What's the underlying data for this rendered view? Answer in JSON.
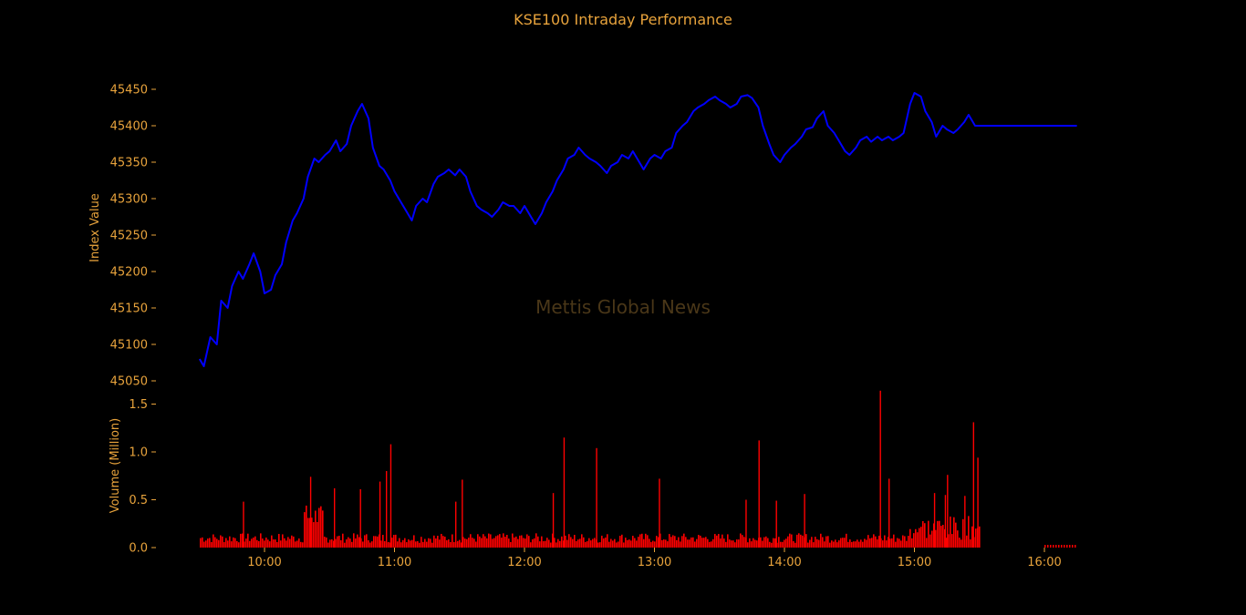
{
  "chart_data": [
    {
      "type": "line",
      "title": "KSE100 Intraday Performance",
      "ylabel": "Index Value",
      "ylim": [
        45040,
        45480
      ],
      "yticks": [
        45050,
        45100,
        45150,
        45200,
        45250,
        45300,
        45350,
        45400,
        45450
      ],
      "xlim_minutes": [
        9.3,
        16.5
      ],
      "series": [
        {
          "color": "#0000ff",
          "x": [
            "09:30",
            "09:32",
            "09:35",
            "09:38",
            "09:40",
            "09:43",
            "09:45",
            "09:48",
            "09:50",
            "09:53",
            "09:55",
            "09:58",
            "10:00",
            "10:03",
            "10:05",
            "10:08",
            "10:10",
            "10:13",
            "10:15",
            "10:18",
            "10:20",
            "10:23",
            "10:25",
            "10:28",
            "10:30",
            "10:33",
            "10:35",
            "10:38",
            "10:40",
            "10:43",
            "10:45",
            "10:48",
            "10:50",
            "10:53",
            "10:55",
            "10:58",
            "11:00",
            "11:03",
            "11:05",
            "11:08",
            "11:10",
            "11:13",
            "11:15",
            "11:18",
            "11:20",
            "11:23",
            "11:25",
            "11:28",
            "11:30",
            "11:33",
            "11:35",
            "11:38",
            "11:40",
            "11:43",
            "11:45",
            "11:48",
            "11:50",
            "11:53",
            "11:55",
            "11:58",
            "12:00",
            "12:03",
            "12:05",
            "12:08",
            "12:10",
            "12:13",
            "12:15",
            "12:18",
            "12:20",
            "12:23",
            "12:25",
            "12:28",
            "12:30",
            "12:33",
            "12:35",
            "12:38",
            "12:40",
            "12:43",
            "12:45",
            "12:48",
            "12:50",
            "12:53",
            "12:55",
            "12:58",
            "13:00",
            "13:03",
            "13:05",
            "13:08",
            "13:10",
            "13:13",
            "13:15",
            "13:18",
            "13:20",
            "13:23",
            "13:25",
            "13:28",
            "13:30",
            "13:33",
            "13:35",
            "13:38",
            "13:40",
            "13:43",
            "13:45",
            "13:48",
            "13:50",
            "13:53",
            "13:55",
            "13:58",
            "14:00",
            "14:03",
            "14:05",
            "14:08",
            "14:10",
            "14:13",
            "14:15",
            "14:18",
            "14:20",
            "14:23",
            "14:25",
            "14:28",
            "14:30",
            "14:33",
            "14:35",
            "14:38",
            "14:40",
            "14:43",
            "14:45",
            "14:48",
            "14:50",
            "14:53",
            "14:55",
            "14:58",
            "15:00",
            "15:03",
            "15:05",
            "15:08",
            "15:10",
            "15:13",
            "15:15",
            "15:18",
            "15:20",
            "15:23",
            "15:25",
            "15:28",
            "15:30",
            "15:45",
            "16:00",
            "16:15"
          ],
          "y": [
            45080,
            45070,
            45110,
            45100,
            45160,
            45150,
            45180,
            45200,
            45190,
            45210,
            45225,
            45200,
            45170,
            45175,
            45195,
            45210,
            45240,
            45270,
            45280,
            45300,
            45330,
            45355,
            45350,
            45360,
            45365,
            45380,
            45365,
            45375,
            45400,
            45420,
            45430,
            45410,
            45370,
            45345,
            45340,
            45325,
            45310,
            45295,
            45285,
            45270,
            45290,
            45300,
            45295,
            45320,
            45330,
            45335,
            45340,
            45332,
            45340,
            45330,
            45310,
            45290,
            45285,
            45280,
            45275,
            45285,
            45295,
            45290,
            45290,
            45280,
            45290,
            45275,
            45265,
            45280,
            45295,
            45310,
            45325,
            45340,
            45355,
            45360,
            45370,
            45360,
            45355,
            45350,
            45345,
            45335,
            45345,
            45350,
            45360,
            45355,
            45365,
            45350,
            45340,
            45355,
            45360,
            45355,
            45365,
            45370,
            45390,
            45400,
            45405,
            45420,
            45425,
            45430,
            45435,
            45440,
            45435,
            45430,
            45425,
            45430,
            45440,
            45442,
            45438,
            45425,
            45400,
            45375,
            45360,
            45350,
            45360,
            45370,
            45375,
            45385,
            45395,
            45398,
            45410,
            45420,
            45400,
            45390,
            45380,
            45365,
            45360,
            45370,
            45380,
            45385,
            45378,
            45385,
            45380,
            45385,
            45380,
            45385,
            45390,
            45430,
            45445,
            45440,
            45420,
            45405,
            45385,
            45400,
            45395,
            45390,
            45395,
            45405,
            45415,
            45400,
            45400,
            45400,
            45400,
            45400
          ]
        }
      ]
    },
    {
      "type": "bar",
      "ylabel": "Volume (Million)",
      "ylim": [
        0,
        1.65
      ],
      "yticks": [
        "0.0",
        "0.5",
        "1.0",
        "1.5"
      ],
      "xticks": [
        "10:00",
        "11:00",
        "12:00",
        "13:00",
        "14:00",
        "15:00",
        "16:00"
      ],
      "color": "#ff0000",
      "spikes": [
        {
          "t": "09:50",
          "v": 0.48
        },
        {
          "t": "10:21",
          "v": 0.74
        },
        {
          "t": "10:32",
          "v": 0.62
        },
        {
          "t": "10:44",
          "v": 0.61
        },
        {
          "t": "10:53",
          "v": 0.69
        },
        {
          "t": "10:56",
          "v": 0.8
        },
        {
          "t": "10:58",
          "v": 1.08
        },
        {
          "t": "11:28",
          "v": 0.48
        },
        {
          "t": "11:31",
          "v": 0.71
        },
        {
          "t": "12:13",
          "v": 0.57
        },
        {
          "t": "12:18",
          "v": 1.15
        },
        {
          "t": "12:33",
          "v": 1.04
        },
        {
          "t": "13:02",
          "v": 0.72
        },
        {
          "t": "13:42",
          "v": 0.5
        },
        {
          "t": "13:48",
          "v": 1.12
        },
        {
          "t": "13:56",
          "v": 0.49
        },
        {
          "t": "14:09",
          "v": 0.56
        },
        {
          "t": "14:44",
          "v": 1.64
        },
        {
          "t": "14:48",
          "v": 0.72
        },
        {
          "t": "15:09",
          "v": 0.57
        },
        {
          "t": "15:14",
          "v": 0.55
        },
        {
          "t": "15:15",
          "v": 0.76
        },
        {
          "t": "15:23",
          "v": 0.54
        },
        {
          "t": "15:27",
          "v": 1.31
        },
        {
          "t": "15:29",
          "v": 0.94
        }
      ]
    }
  ],
  "watermark": "Mettis Global News"
}
